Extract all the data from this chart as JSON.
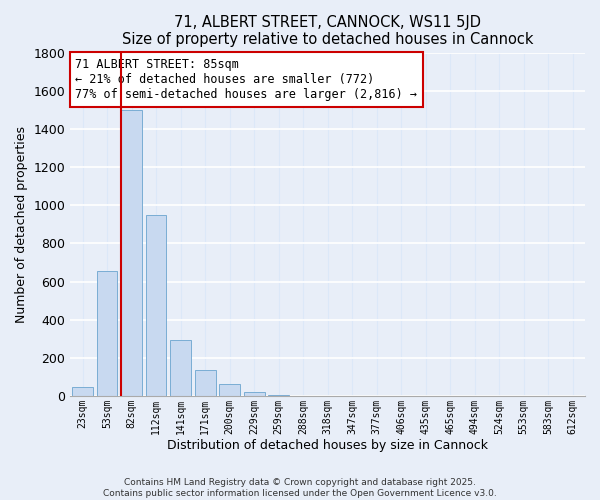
{
  "title": "71, ALBERT STREET, CANNOCK, WS11 5JD",
  "subtitle": "Size of property relative to detached houses in Cannock",
  "xlabel": "Distribution of detached houses by size in Cannock",
  "ylabel": "Number of detached properties",
  "bar_labels": [
    "23sqm",
    "53sqm",
    "82sqm",
    "112sqm",
    "141sqm",
    "171sqm",
    "200sqm",
    "229sqm",
    "259sqm",
    "288sqm",
    "318sqm",
    "347sqm",
    "377sqm",
    "406sqm",
    "435sqm",
    "465sqm",
    "494sqm",
    "524sqm",
    "553sqm",
    "583sqm",
    "612sqm"
  ],
  "bar_values": [
    45,
    655,
    1500,
    950,
    295,
    135,
    65,
    20,
    5,
    2,
    1,
    0,
    0,
    0,
    0,
    0,
    0,
    0,
    0,
    0,
    0
  ],
  "bar_color": "#c8d9f0",
  "bar_edge_color": "#7aadd4",
  "grid_color": "#dce8f8",
  "ylim": [
    0,
    1800
  ],
  "yticks": [
    0,
    200,
    400,
    600,
    800,
    1000,
    1200,
    1400,
    1600,
    1800
  ],
  "property_line_index": 2,
  "property_line_color": "#cc0000",
  "annotation_title": "71 ALBERT STREET: 85sqm",
  "annotation_line1": "← 21% of detached houses are smaller (772)",
  "annotation_line2": "77% of semi-detached houses are larger (2,816) →",
  "footer_line1": "Contains HM Land Registry data © Crown copyright and database right 2025.",
  "footer_line2": "Contains public sector information licensed under the Open Government Licence v3.0.",
  "bg_color": "#e8eef8"
}
